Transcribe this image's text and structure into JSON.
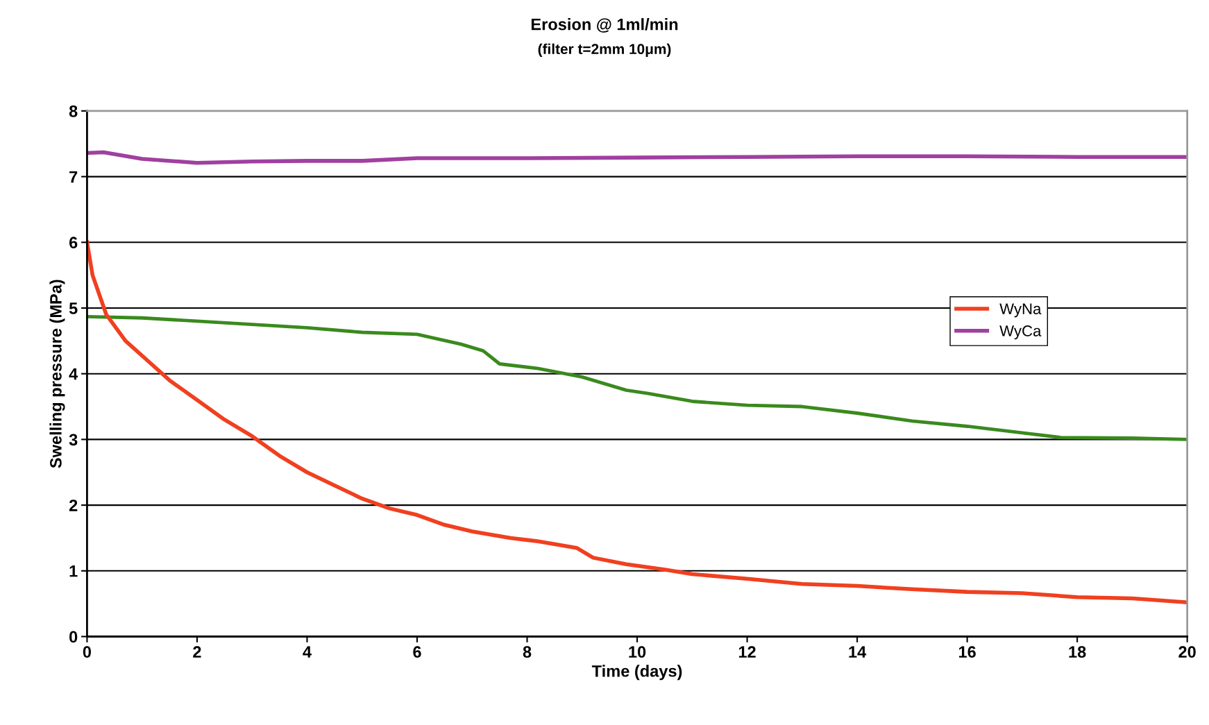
{
  "chart_data": {
    "type": "line",
    "title": "Erosion @ 1ml/min",
    "subtitle": "(filter t=2mm 10μm)",
    "xlabel": "Time (days)",
    "ylabel": "Swelling pressure (MPa)",
    "xlim": [
      0,
      20
    ],
    "xticks": [
      0,
      2,
      4,
      6,
      8,
      10,
      12,
      14,
      16,
      18,
      20
    ],
    "ylim": [
      0,
      8
    ],
    "yticks": [
      0,
      1,
      2,
      3,
      4,
      5,
      6,
      7,
      8
    ],
    "grid": "y",
    "legend": "right",
    "marker": "none",
    "line_style": "solid",
    "series": [
      {
        "color": "#3a8a1e",
        "x": [
          0,
          1,
          2,
          3,
          4,
          5,
          6,
          6.8,
          7.2,
          7.5,
          8.2,
          9,
          9.8,
          10.2,
          11,
          12,
          13,
          14,
          15,
          16,
          17,
          17.7,
          19,
          20
        ],
        "values": [
          4.87,
          4.85,
          4.8,
          4.75,
          4.7,
          4.63,
          4.6,
          4.45,
          4.35,
          4.15,
          4.08,
          3.95,
          3.75,
          3.7,
          3.58,
          3.52,
          3.5,
          3.4,
          3.28,
          3.2,
          3.1,
          3.03,
          3.02,
          3.0
        ]
      },
      {
        "name": "WyNa",
        "color": "#f04020",
        "x": [
          0,
          0.1,
          0.35,
          0.7,
          1.1,
          1.5,
          2,
          2.5,
          3,
          3.5,
          4,
          4.5,
          5,
          5.5,
          6,
          6.5,
          7,
          7.7,
          8.2,
          8.9,
          9.2,
          9.8,
          10.5,
          11,
          12,
          13,
          14,
          15,
          16,
          17,
          18,
          19,
          20
        ],
        "values": [
          6.0,
          5.5,
          4.9,
          4.5,
          4.2,
          3.9,
          3.6,
          3.3,
          3.05,
          2.75,
          2.5,
          2.3,
          2.1,
          1.95,
          1.85,
          1.7,
          1.6,
          1.5,
          1.45,
          1.35,
          1.2,
          1.1,
          1.02,
          0.95,
          0.88,
          0.8,
          0.77,
          0.72,
          0.68,
          0.66,
          0.6,
          0.58,
          0.52
        ]
      },
      {
        "name": "WyCa",
        "color": "#a040a0",
        "x": [
          0,
          0.3,
          1,
          2,
          3,
          4,
          5,
          6,
          8,
          10,
          12,
          14,
          16,
          18,
          20
        ],
        "values": [
          7.36,
          7.37,
          7.27,
          7.21,
          7.23,
          7.24,
          7.24,
          7.28,
          7.28,
          7.29,
          7.3,
          7.31,
          7.31,
          7.3,
          7.3
        ]
      }
    ]
  }
}
